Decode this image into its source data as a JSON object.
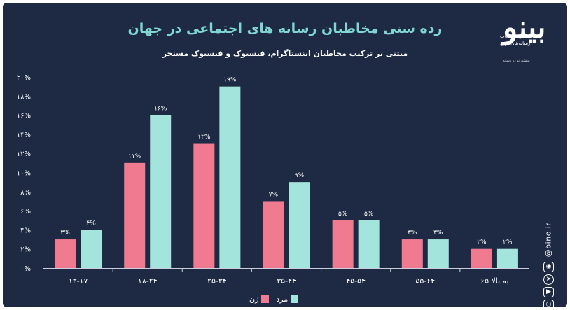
{
  "header": {
    "title": "رده سنی مخاطبان رسانه های اجتماعی در جهان",
    "subtitle": "مبتنی بر ترکیب مخاطبان اینستاگرام، فیسبوک و فیسبوک مسنجر"
  },
  "logo": {
    "mark": "بینو",
    "line1": "دفتر مطالعات",
    "line2": "رسانه‌های نوین",
    "tagline": "بینشی نو در رسانه"
  },
  "side": {
    "url": "@bino.ir",
    "icons": [
      "web-icon",
      "telegram-icon",
      "youtube-icon",
      "instagram-icon"
    ]
  },
  "colors": {
    "background": "#1e2a44",
    "female": "#f07b90",
    "male": "#a3e4dc",
    "title": "#7fd6d2"
  },
  "chart_data": {
    "type": "bar",
    "title": "رده سنی مخاطبان رسانه های اجتماعی در جهان",
    "subtitle": "مبتنی بر ترکیب مخاطبان اینستاگرام، فیسبوک و فیسبوک مسنجر",
    "categories": [
      "۱۳-۱۷",
      "۱۸-۲۴",
      "۲۵-۳۴",
      "۳۵-۴۴",
      "۴۵-۵۴",
      "۵۵-۶۴",
      "۶۵ به بالا"
    ],
    "series": [
      {
        "name": "زن",
        "values": [
          3,
          11,
          13,
          7,
          5,
          3,
          2
        ],
        "labels": [
          "۳%",
          "۱۱%",
          "۱۳%",
          "۷%",
          "۵%",
          "۳%",
          "۲%"
        ],
        "color": "#f07b90"
      },
      {
        "name": "مرد",
        "values": [
          4,
          16,
          19,
          9,
          5,
          3,
          2
        ],
        "labels": [
          "۴%",
          "۱۶%",
          "۱۹%",
          "۹%",
          "۵%",
          "۳%",
          "۲%"
        ],
        "color": "#a3e4dc"
      }
    ],
    "ylim": [
      0,
      20
    ],
    "yticks": [
      0,
      2,
      4,
      6,
      8,
      10,
      12,
      14,
      16,
      18,
      20
    ],
    "ytick_labels": [
      "۰%",
      "۲%",
      "۴%",
      "۶%",
      "۸%",
      "۱۰%",
      "۱۲%",
      "۱۴%",
      "۱۶%",
      "۱۸%",
      "۲۰%"
    ],
    "xlabel": "",
    "ylabel": "",
    "grid": false,
    "legend": "bottom-center"
  }
}
